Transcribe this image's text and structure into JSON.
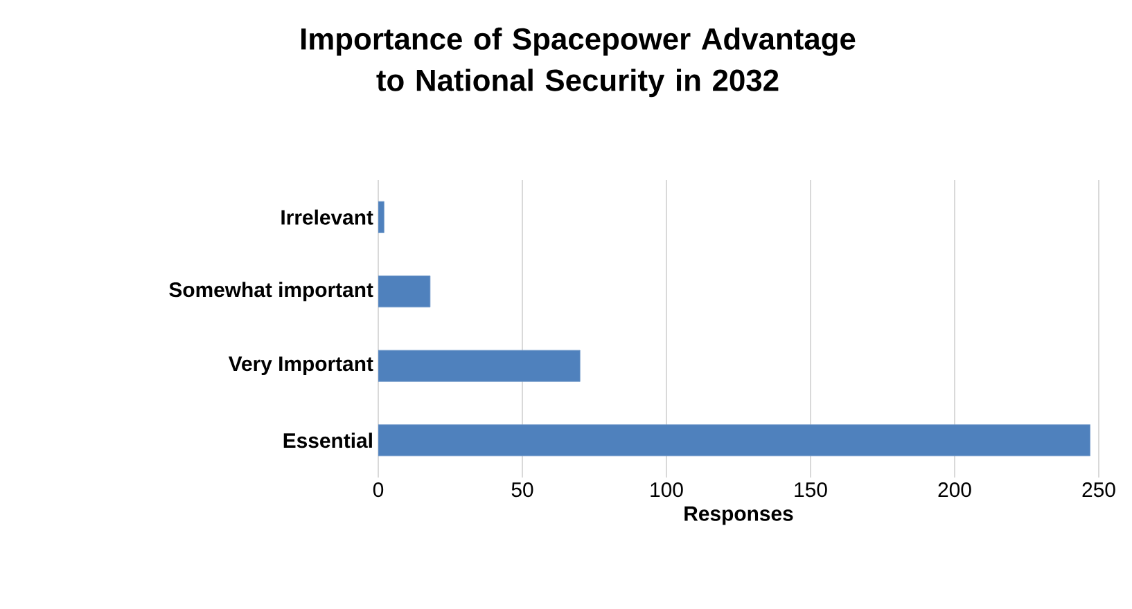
{
  "chart_data": {
    "type": "bar",
    "orientation": "horizontal",
    "title": "Importance of Spacepower Advantage to National Security in 2032",
    "xlabel": "Responses",
    "categories": [
      "Irrelevant",
      "Somewhat important",
      "Very Important",
      "Essential"
    ],
    "values": [
      2,
      18,
      70,
      247
    ],
    "color": "#4f81bd",
    "xlim": [
      0,
      250
    ],
    "xticks": [
      0,
      50,
      100,
      150,
      200,
      250
    ],
    "grid": "x"
  }
}
